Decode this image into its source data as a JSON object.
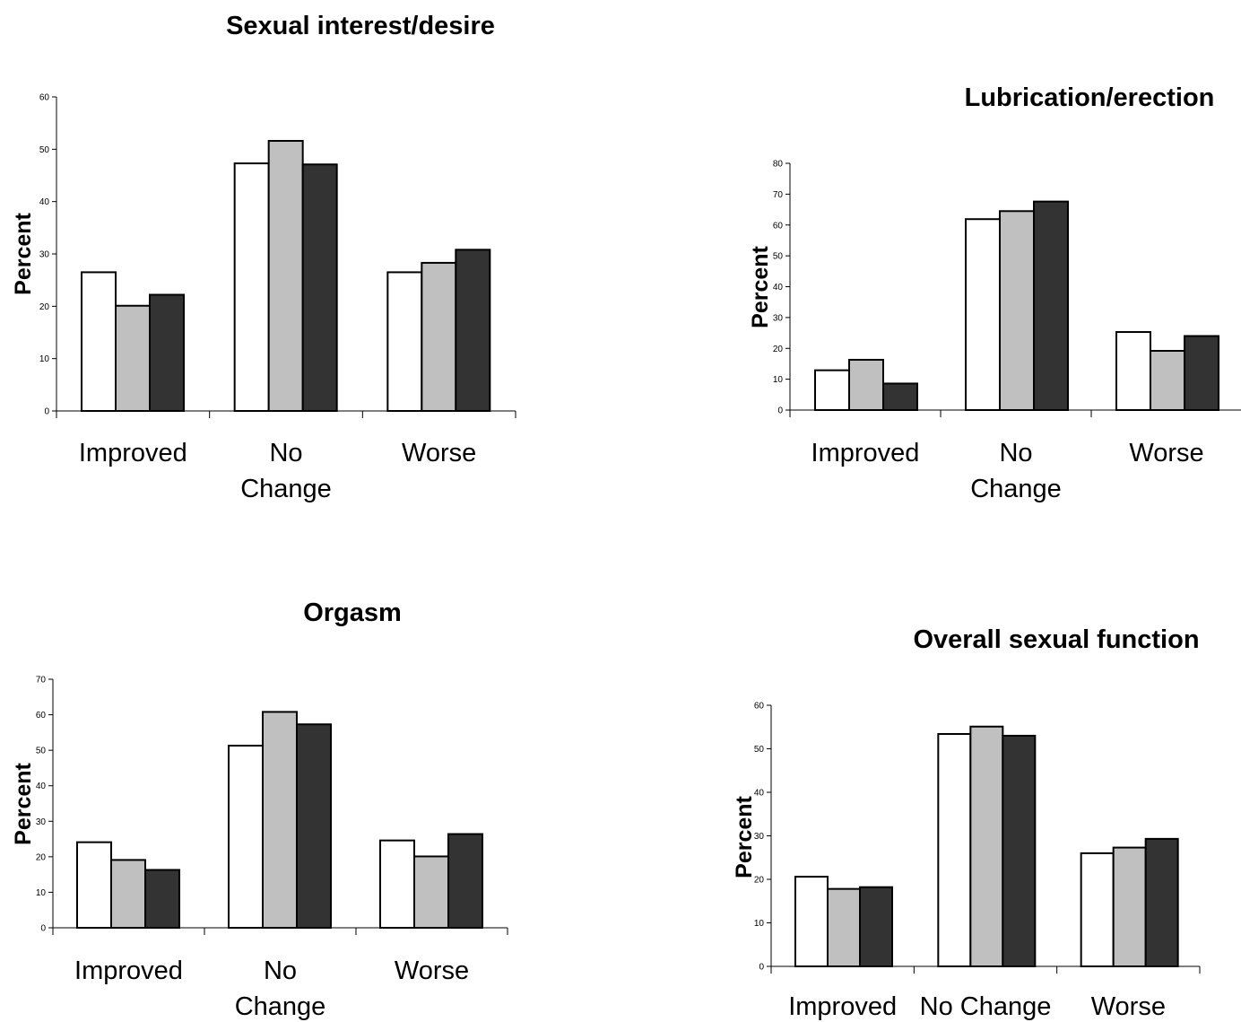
{
  "chart_data": [
    {
      "type": "bar",
      "title": "Sexual interest/desire",
      "ylabel": "Percent",
      "xlabel": "",
      "ylim": [
        0,
        60
      ],
      "yticks": [
        0,
        10,
        20,
        30,
        40,
        50,
        60
      ],
      "categories": [
        "Improved",
        "No Change",
        "Worse"
      ],
      "category_lines": [
        [
          "Improved"
        ],
        [
          "No",
          "Change"
        ],
        [
          "Worse"
        ]
      ],
      "colors": [
        "#ffffff",
        "#c0c0c0",
        "#333333"
      ],
      "series": [
        {
          "values": [
            26.5,
            47.3,
            26.5
          ]
        },
        {
          "values": [
            20.1,
            51.6,
            28.3
          ]
        },
        {
          "values": [
            22.2,
            47.1,
            30.8
          ]
        }
      ],
      "legend": "none",
      "grid": false
    },
    {
      "type": "bar",
      "title": "Lubrication/erection",
      "ylabel": "Percent",
      "xlabel": "",
      "ylim": [
        0,
        80
      ],
      "yticks": [
        0,
        10,
        20,
        30,
        40,
        50,
        60,
        70,
        80
      ],
      "categories": [
        "Improved",
        "No Change",
        "Worse"
      ],
      "category_lines": [
        [
          "Improved"
        ],
        [
          "No",
          "Change"
        ],
        [
          "Worse"
        ]
      ],
      "colors": [
        "#ffffff",
        "#c0c0c0",
        "#333333"
      ],
      "series": [
        {
          "values": [
            12.9,
            61.9,
            25.3
          ]
        },
        {
          "values": [
            16.3,
            64.5,
            19.2
          ]
        },
        {
          "values": [
            8.6,
            67.6,
            24.0
          ]
        }
      ],
      "legend": "none",
      "grid": false
    },
    {
      "type": "bar",
      "title": "Orgasm",
      "ylabel": "Percent",
      "xlabel": "",
      "ylim": [
        0,
        70
      ],
      "yticks": [
        0,
        10,
        20,
        30,
        40,
        50,
        60,
        70
      ],
      "categories": [
        "Improved",
        "No Change",
        "Worse"
      ],
      "category_lines": [
        [
          "Improved"
        ],
        [
          "No",
          "Change"
        ],
        [
          "Worse"
        ]
      ],
      "colors": [
        "#ffffff",
        "#c0c0c0",
        "#333333"
      ],
      "series": [
        {
          "values": [
            24.1,
            51.3,
            24.6
          ]
        },
        {
          "values": [
            19.1,
            60.8,
            20.1
          ]
        },
        {
          "values": [
            16.3,
            57.3,
            26.4
          ]
        }
      ],
      "legend": "none",
      "grid": false
    },
    {
      "type": "bar",
      "title": "Overall sexual function",
      "ylabel": "Percent",
      "xlabel": "",
      "ylim": [
        0,
        60
      ],
      "yticks": [
        0,
        10,
        20,
        30,
        40,
        50,
        60
      ],
      "categories": [
        "Improved",
        "No Change",
        "Worse"
      ],
      "category_lines": [
        [
          "Improved"
        ],
        [
          "No Change"
        ],
        [
          "Worse"
        ]
      ],
      "colors": [
        "#ffffff",
        "#c0c0c0",
        "#333333"
      ],
      "series": [
        {
          "values": [
            20.6,
            53.4,
            26.0
          ]
        },
        {
          "values": [
            17.8,
            55.1,
            27.3
          ]
        },
        {
          "values": [
            18.2,
            53.0,
            29.3
          ]
        }
      ],
      "legend": "none",
      "grid": false
    }
  ]
}
